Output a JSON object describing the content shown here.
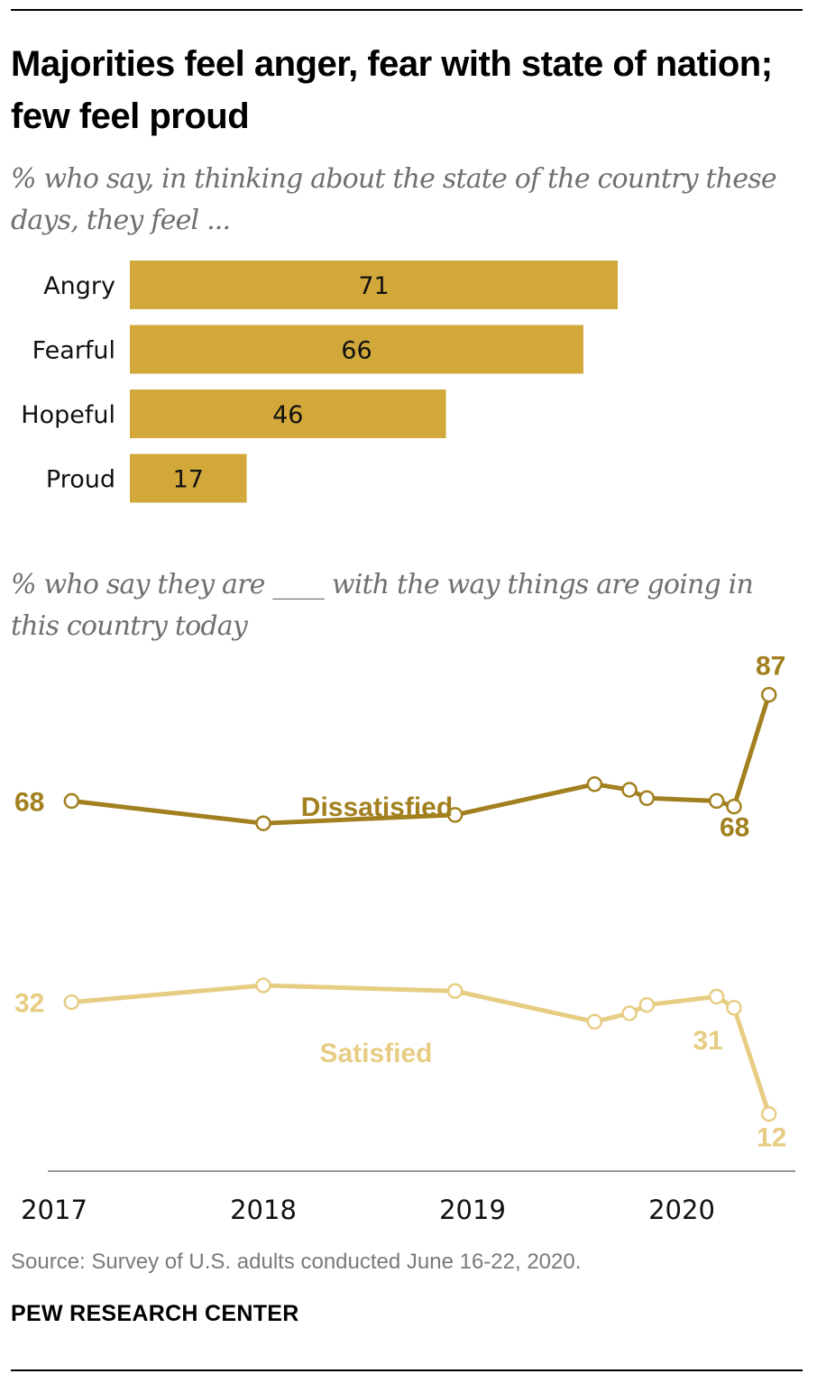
{
  "title": "Majorities feel anger, fear with state of nation; few feel proud",
  "subtitle_bars": "% who say, in thinking about the state of the country these days, they feel ...",
  "subtitle_lines": "% who say they are ____ with the way things are going in this country today",
  "source": "Source: Survey of U.S. adults conducted June 16-22, 2020.",
  "brand": "PEW RESEARCH CENTER",
  "colors": {
    "bar": "#d2a83a",
    "dissatisfied": "#a2801f",
    "satisfied": "#e7cd84",
    "axis": "#9a9a9a"
  },
  "chart_data": [
    {
      "type": "bar",
      "orientation": "horizontal",
      "categories": [
        "Angry",
        "Fearful",
        "Hopeful",
        "Proud"
      ],
      "values": [
        71,
        66,
        46,
        17
      ],
      "data_labels": [
        "71",
        "66",
        "46",
        "17"
      ],
      "xlim": [
        0,
        100
      ]
    },
    {
      "type": "line",
      "x_ticks": [
        "2017",
        "2018",
        "2019",
        "2020"
      ],
      "ylim": [
        0,
        100
      ],
      "series": [
        {
          "name": "Dissatisfied",
          "x": [
            "2017-02",
            "2018-01",
            "2018-12",
            "2019-08",
            "2019-10",
            "2019-11",
            "2020-03",
            "2020-04",
            "2020-06"
          ],
          "values": [
            68,
            64,
            65.5,
            71,
            70,
            68.5,
            68,
            67,
            87
          ],
          "labels": [
            {
              "index": 0,
              "text": "68"
            },
            {
              "index": 6,
              "text": "68"
            },
            {
              "index": 8,
              "text": "87"
            }
          ]
        },
        {
          "name": "Satisfied",
          "x": [
            "2017-02",
            "2018-01",
            "2018-12",
            "2019-08",
            "2019-10",
            "2019-11",
            "2020-03",
            "2020-04",
            "2020-06"
          ],
          "values": [
            32,
            35,
            34,
            28.5,
            30,
            31.5,
            33,
            31,
            12
          ],
          "labels": [
            {
              "index": 0,
              "text": "32"
            },
            {
              "index": 7,
              "text": "31"
            },
            {
              "index": 8,
              "text": "12"
            }
          ]
        }
      ]
    }
  ]
}
